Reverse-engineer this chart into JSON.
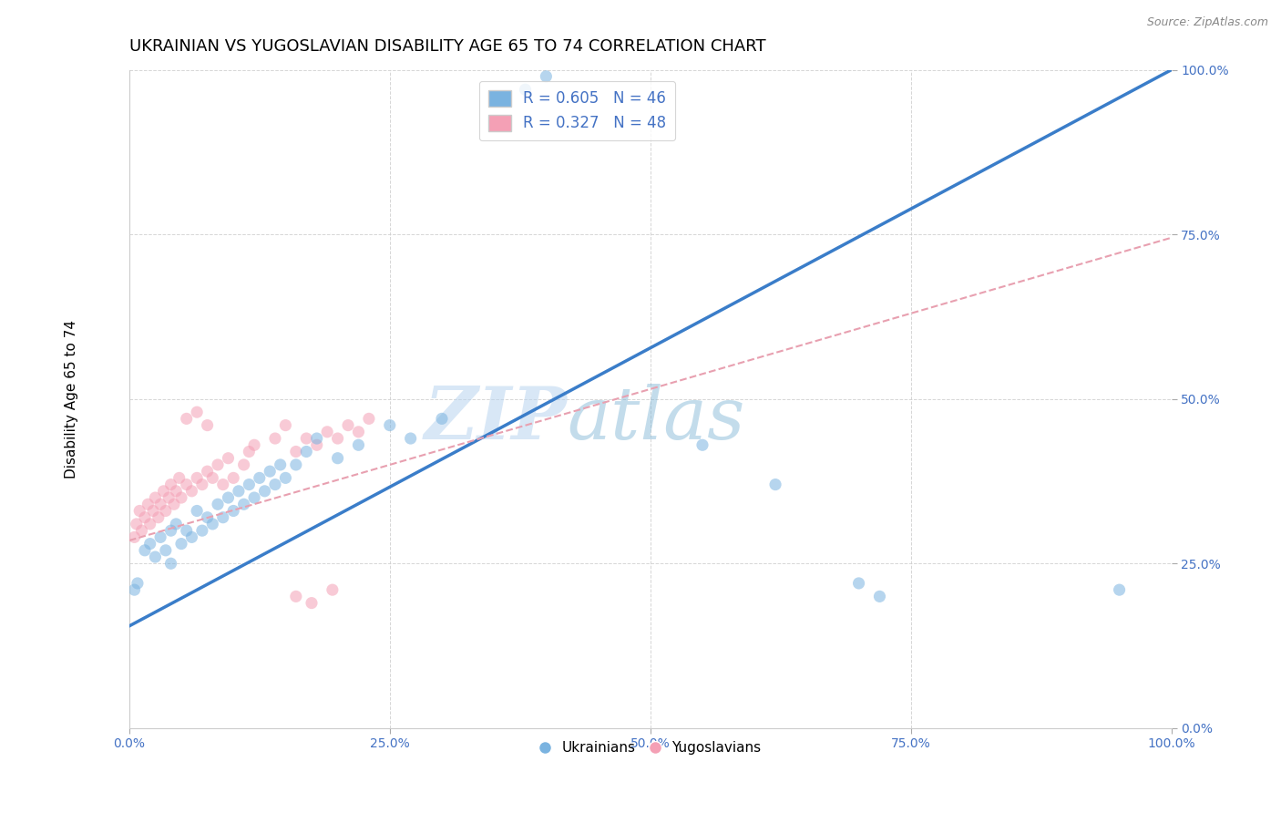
{
  "title": "UKRAINIAN VS YUGOSLAVIAN DISABILITY AGE 65 TO 74 CORRELATION CHART",
  "source_text": "Source: ZipAtlas.com",
  "ylabel": "Disability Age 65 to 74",
  "xlim": [
    0.0,
    1.0
  ],
  "ylim": [
    0.0,
    1.0
  ],
  "watermark_zip": "ZIP",
  "watermark_atlas": "atlas",
  "legend_blue_label": "R = 0.605   N = 46",
  "legend_pink_label": "R = 0.327   N = 48",
  "blue_scatter_color": "#7ab3e0",
  "pink_scatter_color": "#f4a0b5",
  "blue_line_color": "#3a7dc9",
  "pink_line_color": "#e8a0b0",
  "ukrainians_label": "Ukrainians",
  "yugoslavians_label": "Yugoslavians",
  "blue_scatter_x": [
    0.38,
    0.4,
    0.015,
    0.02,
    0.025,
    0.03,
    0.035,
    0.04,
    0.04,
    0.045,
    0.05,
    0.055,
    0.06,
    0.065,
    0.07,
    0.075,
    0.08,
    0.085,
    0.09,
    0.095,
    0.1,
    0.105,
    0.11,
    0.115,
    0.12,
    0.125,
    0.13,
    0.135,
    0.14,
    0.145,
    0.15,
    0.16,
    0.17,
    0.18,
    0.2,
    0.22,
    0.25,
    0.27,
    0.3,
    0.55,
    0.62,
    0.7,
    0.72,
    0.95,
    0.005,
    0.008
  ],
  "blue_scatter_y": [
    0.97,
    0.99,
    0.27,
    0.28,
    0.26,
    0.29,
    0.27,
    0.3,
    0.25,
    0.31,
    0.28,
    0.3,
    0.29,
    0.33,
    0.3,
    0.32,
    0.31,
    0.34,
    0.32,
    0.35,
    0.33,
    0.36,
    0.34,
    0.37,
    0.35,
    0.38,
    0.36,
    0.39,
    0.37,
    0.4,
    0.38,
    0.4,
    0.42,
    0.44,
    0.41,
    0.43,
    0.46,
    0.44,
    0.47,
    0.43,
    0.37,
    0.22,
    0.2,
    0.21,
    0.21,
    0.22
  ],
  "pink_scatter_x": [
    0.005,
    0.007,
    0.01,
    0.012,
    0.015,
    0.018,
    0.02,
    0.023,
    0.025,
    0.028,
    0.03,
    0.033,
    0.035,
    0.038,
    0.04,
    0.043,
    0.045,
    0.048,
    0.05,
    0.055,
    0.06,
    0.065,
    0.07,
    0.075,
    0.08,
    0.085,
    0.09,
    0.095,
    0.1,
    0.11,
    0.115,
    0.12,
    0.14,
    0.15,
    0.16,
    0.17,
    0.18,
    0.19,
    0.2,
    0.21,
    0.22,
    0.23,
    0.16,
    0.175,
    0.195,
    0.055,
    0.065,
    0.075
  ],
  "pink_scatter_y": [
    0.29,
    0.31,
    0.33,
    0.3,
    0.32,
    0.34,
    0.31,
    0.33,
    0.35,
    0.32,
    0.34,
    0.36,
    0.33,
    0.35,
    0.37,
    0.34,
    0.36,
    0.38,
    0.35,
    0.37,
    0.36,
    0.38,
    0.37,
    0.39,
    0.38,
    0.4,
    0.37,
    0.41,
    0.38,
    0.4,
    0.42,
    0.43,
    0.44,
    0.46,
    0.42,
    0.44,
    0.43,
    0.45,
    0.44,
    0.46,
    0.45,
    0.47,
    0.2,
    0.19,
    0.21,
    0.47,
    0.48,
    0.46
  ],
  "blue_line_intercept": 0.155,
  "blue_line_slope": 0.845,
  "pink_line_intercept": 0.285,
  "pink_line_slope": 0.46,
  "background_color": "#ffffff",
  "grid_color": "#cccccc",
  "title_fontsize": 13,
  "axis_label_fontsize": 11,
  "tick_fontsize": 10,
  "scatter_size": 90,
  "scatter_alpha": 0.55
}
